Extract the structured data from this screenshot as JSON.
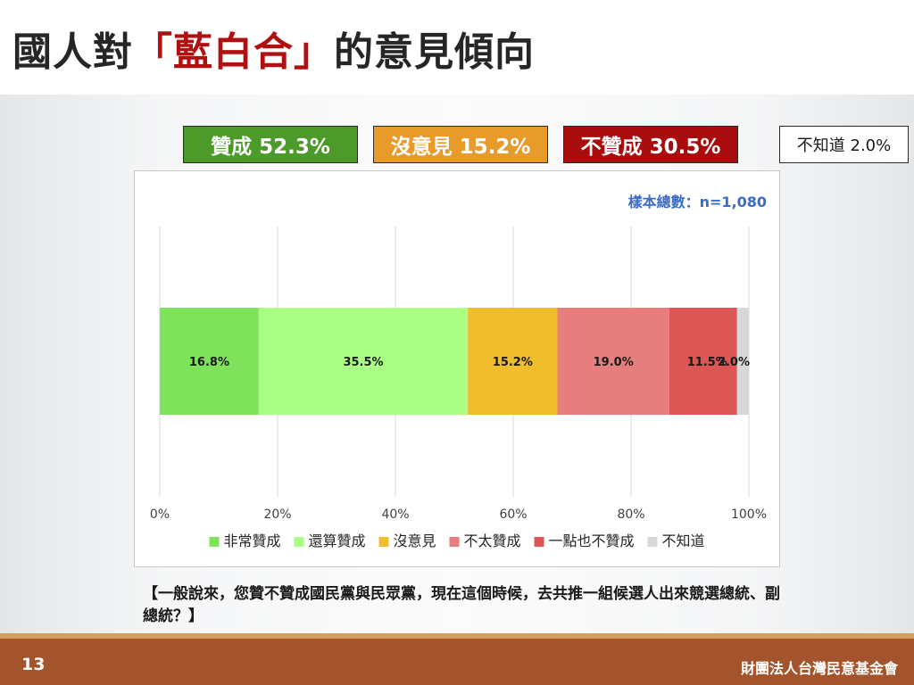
{
  "title": {
    "prefix": "國人對",
    "highlight": "「藍白合」",
    "suffix": "的意見傾向"
  },
  "summary_boxes": [
    {
      "label": "贊成 52.3%",
      "color": "#4c9a2a"
    },
    {
      "label": "沒意見 15.2%",
      "color": "#e89a2a"
    },
    {
      "label": "不贊成 30.5%",
      "color": "#a80c0c"
    },
    {
      "label": "不知道 2.0%",
      "color": "#ffffff"
    }
  ],
  "sample_note": "樣本總數：n=1,080",
  "chart_data": {
    "type": "bar",
    "orientation": "horizontal",
    "stacked": true,
    "xlim": [
      0,
      100
    ],
    "x_ticks": [
      "0%",
      "20%",
      "40%",
      "60%",
      "80%",
      "100%"
    ],
    "grid": true,
    "legend_position": "bottom",
    "series": [
      {
        "name": "非常贊成",
        "value": 16.8,
        "label": "16.8%",
        "color": "#7ee35a"
      },
      {
        "name": "還算贊成",
        "value": 35.5,
        "label": "35.5%",
        "color": "#aaff85"
      },
      {
        "name": "沒意見",
        "value": 15.2,
        "label": "15.2%",
        "color": "#f0bd2d"
      },
      {
        "name": "不太贊成",
        "value": 19.0,
        "label": "19.0%",
        "color": "#e67e7e"
      },
      {
        "name": "一點也不贊成",
        "value": 11.5,
        "label": "11.5%",
        "color": "#dd5555"
      },
      {
        "name": "不知道",
        "value": 2.0,
        "label": "2.0%",
        "color": "#d8d8d8"
      }
    ]
  },
  "question": "【一般說來，您贊不贊成國民黨與民眾黨，現在這個時候，去共推一組候選人出來競選總統、副總統？】",
  "footer": {
    "page_number": "13",
    "organization": "財團法人台灣民意基金會"
  }
}
